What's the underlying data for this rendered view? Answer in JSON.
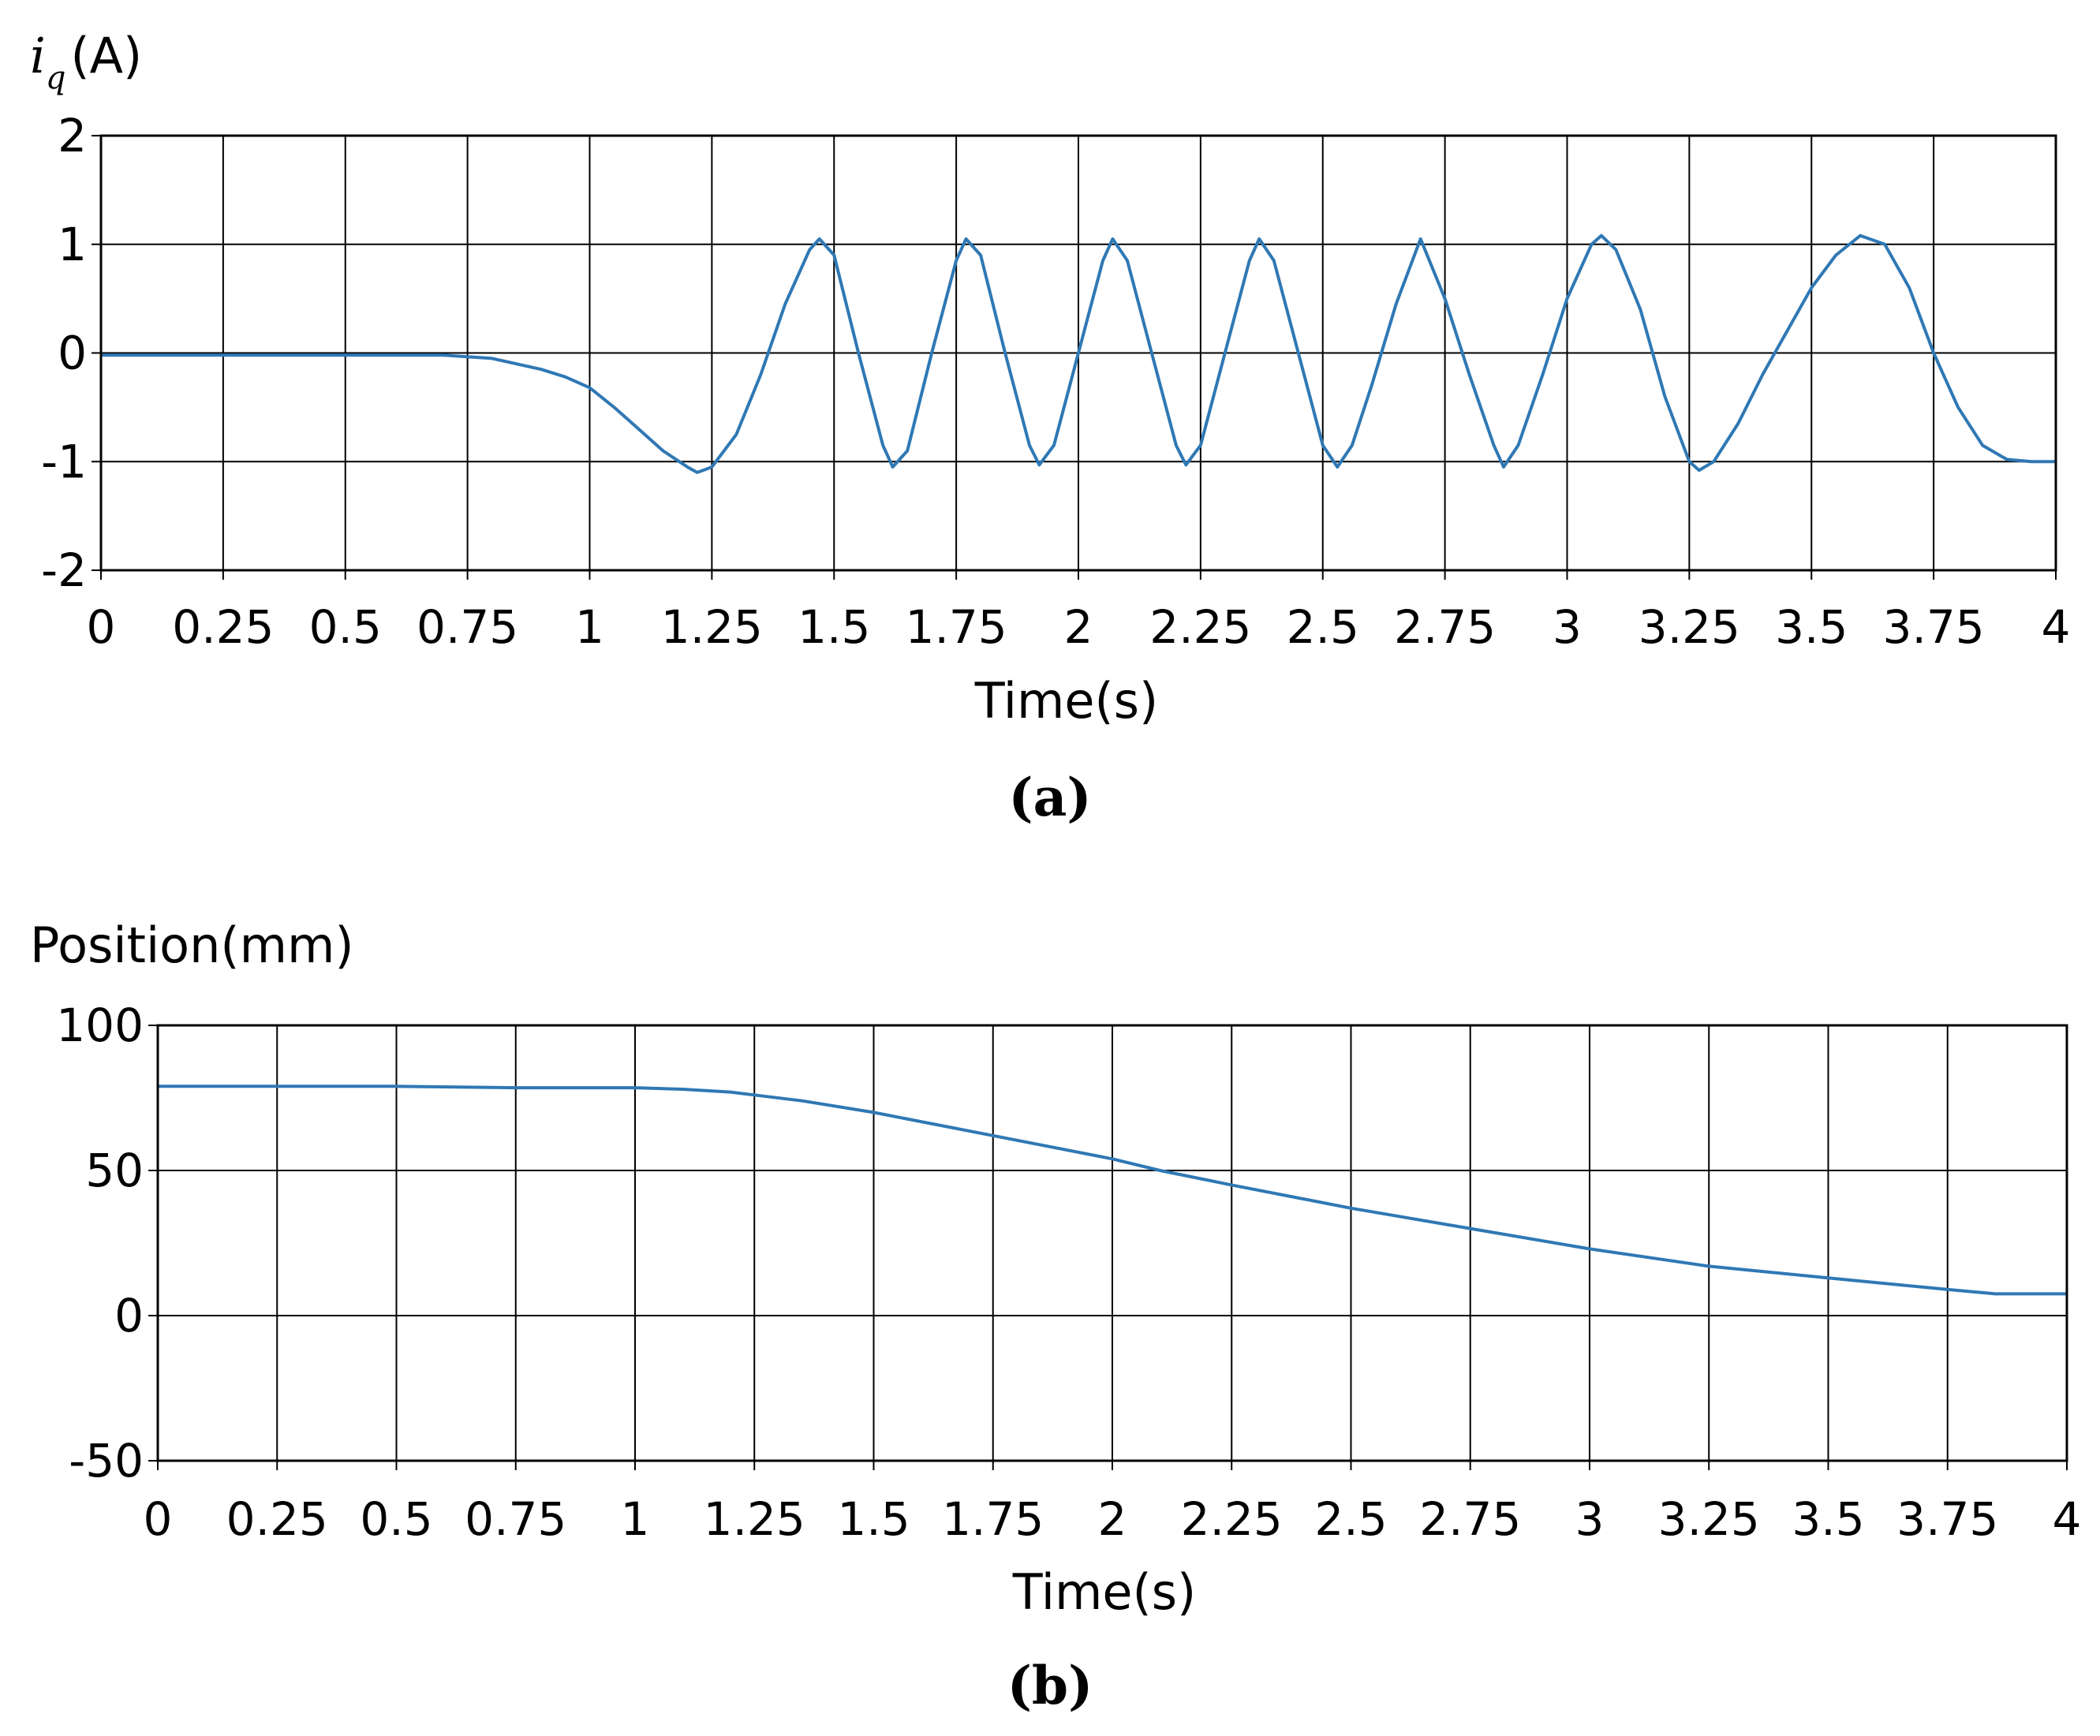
{
  "chart_data": [
    {
      "type": "line",
      "ylabel_symbol": "i",
      "ylabel_subscript": "q",
      "ylabel_unit": "(A)",
      "xlabel": "Time(s)",
      "caption": "(a)",
      "x_ticks": [
        "0",
        "0.25",
        "0.5",
        "0.75",
        "1",
        "1.25",
        "1.5",
        "1.75",
        "2",
        "2.25",
        "2.5",
        "2.75",
        "3",
        "3.25",
        "3.5",
        "3.75",
        "4"
      ],
      "y_ticks": [
        "2",
        "1",
        "0",
        "-1",
        "-2"
      ],
      "xlim": [
        0,
        4
      ],
      "ylim": [
        -2,
        2
      ],
      "grid": true,
      "line_color": "#2f78b4",
      "series": [
        {
          "x": [
            0,
            0.5,
            0.7,
            0.8,
            0.85,
            0.9,
            0.95,
            1.0,
            1.05,
            1.1,
            1.15,
            1.2,
            1.22,
            1.25,
            1.3,
            1.35,
            1.4,
            1.45,
            1.47,
            1.5,
            1.55,
            1.6,
            1.62,
            1.65,
            1.7,
            1.75,
            1.77,
            1.8,
            1.85,
            1.9,
            1.92,
            1.95,
            2.0,
            2.05,
            2.07,
            2.1,
            2.15,
            2.2,
            2.22,
            2.25,
            2.3,
            2.35,
            2.37,
            2.4,
            2.45,
            2.5,
            2.53,
            2.56,
            2.6,
            2.65,
            2.7,
            2.75,
            2.8,
            2.85,
            2.87,
            2.9,
            2.95,
            3.0,
            3.05,
            3.07,
            3.1,
            3.15,
            3.2,
            3.25,
            3.27,
            3.3,
            3.35,
            3.4,
            3.45,
            3.5,
            3.55,
            3.6,
            3.65,
            3.7,
            3.75,
            3.8,
            3.85,
            3.9,
            3.95,
            4.0
          ],
          "y": [
            -0.02,
            -0.02,
            -0.02,
            -0.05,
            -0.1,
            -0.15,
            -0.22,
            -0.32,
            -0.5,
            -0.7,
            -0.9,
            -1.05,
            -1.1,
            -1.05,
            -0.75,
            -0.2,
            0.45,
            0.95,
            1.05,
            0.9,
            0.0,
            -0.85,
            -1.05,
            -0.9,
            0.0,
            0.85,
            1.05,
            0.9,
            0.0,
            -0.85,
            -1.03,
            -0.85,
            0.0,
            0.85,
            1.05,
            0.85,
            0.0,
            -0.85,
            -1.03,
            -0.85,
            0.0,
            0.85,
            1.05,
            0.85,
            0.0,
            -0.85,
            -1.05,
            -0.85,
            -0.3,
            0.45,
            1.05,
            0.5,
            -0.2,
            -0.85,
            -1.05,
            -0.85,
            -0.2,
            0.5,
            1.0,
            1.08,
            0.95,
            0.4,
            -0.4,
            -1.0,
            -1.08,
            -1.0,
            -0.65,
            -0.2,
            0.2,
            0.6,
            0.9,
            1.08,
            1.0,
            0.6,
            0.0,
            -0.5,
            -0.85,
            -0.98,
            -1.0,
            -1.0
          ]
        }
      ]
    },
    {
      "type": "line",
      "ylabel": "Position(mm)",
      "xlabel": "Time(s)",
      "caption": "(b)",
      "x_ticks": [
        "0",
        "0.25",
        "0.5",
        "0.75",
        "1",
        "1.25",
        "1.5",
        "1.75",
        "2",
        "2.25",
        "2.5",
        "2.75",
        "3",
        "3.25",
        "3.5",
        "3.75",
        "4"
      ],
      "y_ticks": [
        "100",
        "50",
        "0",
        "-50"
      ],
      "xlim": [
        0,
        4
      ],
      "ylim": [
        -50,
        100
      ],
      "grid": true,
      "line_color": "#2f78b4",
      "series": [
        {
          "x": [
            0,
            0.5,
            0.75,
            1.0,
            1.1,
            1.2,
            1.25,
            1.35,
            1.5,
            1.75,
            2.0,
            2.1,
            2.25,
            2.5,
            2.75,
            3.0,
            3.25,
            3.5,
            3.75,
            3.85,
            4.0
          ],
          "y": [
            79,
            79,
            78.5,
            78.5,
            78,
            77,
            76,
            74,
            70,
            62,
            54,
            50,
            45,
            37,
            30,
            23,
            17,
            13,
            9,
            7.5,
            7.5
          ]
        }
      ]
    }
  ]
}
